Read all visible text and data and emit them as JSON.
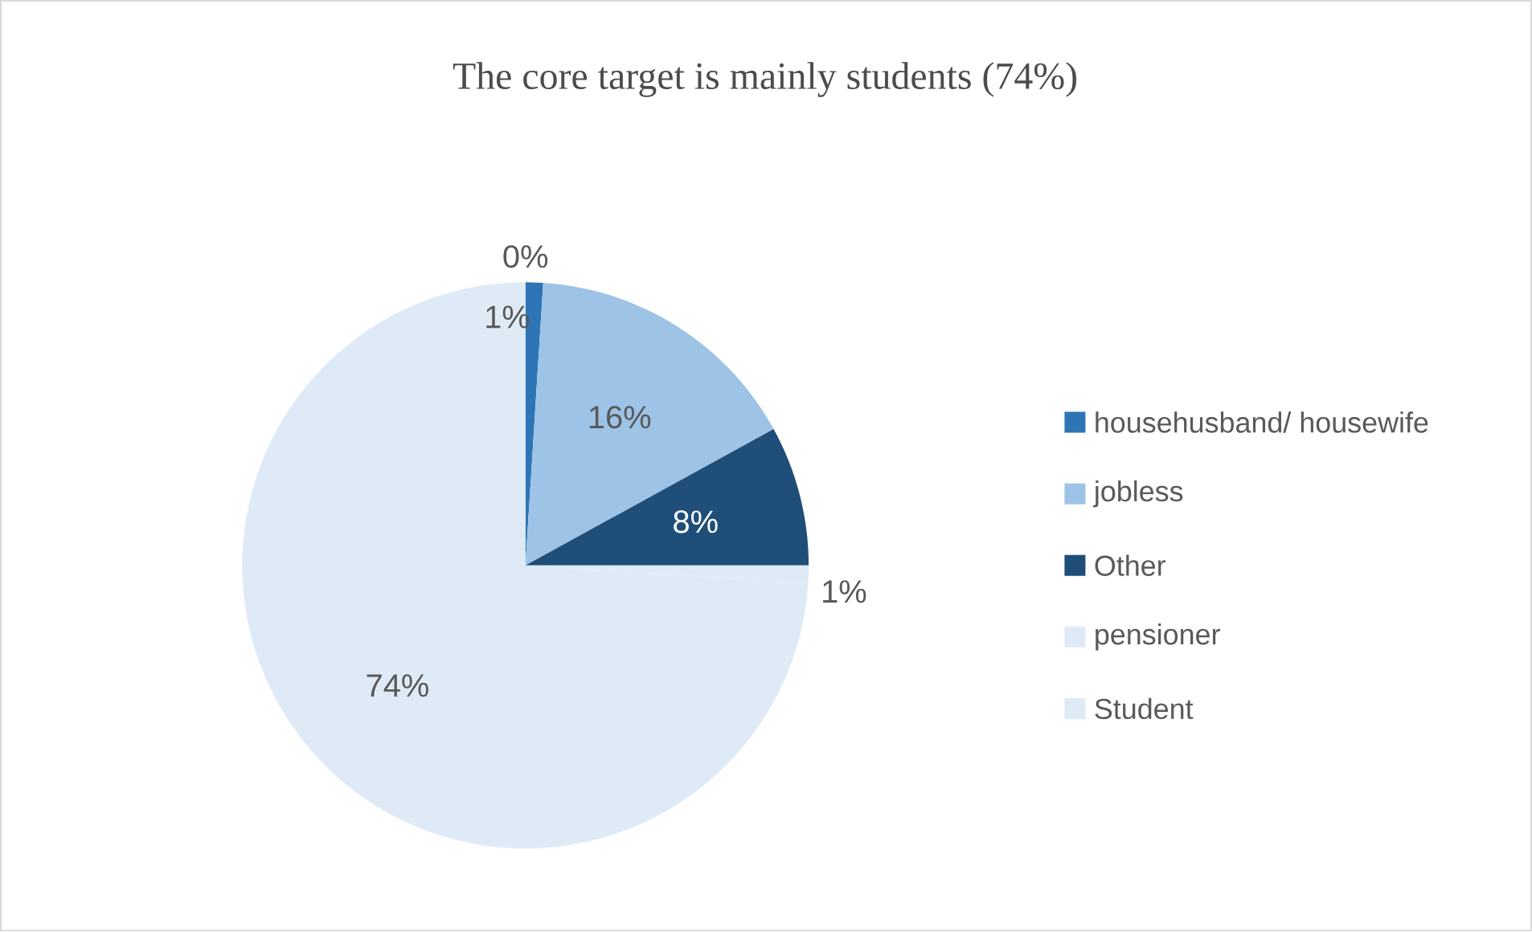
{
  "chart_data": {
    "type": "pie",
    "title": "The core target is mainly students (74%)",
    "categories": [
      null,
      "househusband/ housewife",
      "jobless",
      "Other",
      "pensioner",
      "Student"
    ],
    "values": [
      0,
      1,
      16,
      8,
      1,
      74
    ],
    "colors": [
      "#2e75b6",
      "#2e75b6",
      "#9dc3e6",
      "#1f4e79",
      "#deebf7",
      "#deebf7"
    ],
    "value_labels": [
      "0%",
      "1%",
      "16%",
      "8%",
      "1%",
      "74%"
    ],
    "legend": "right"
  }
}
